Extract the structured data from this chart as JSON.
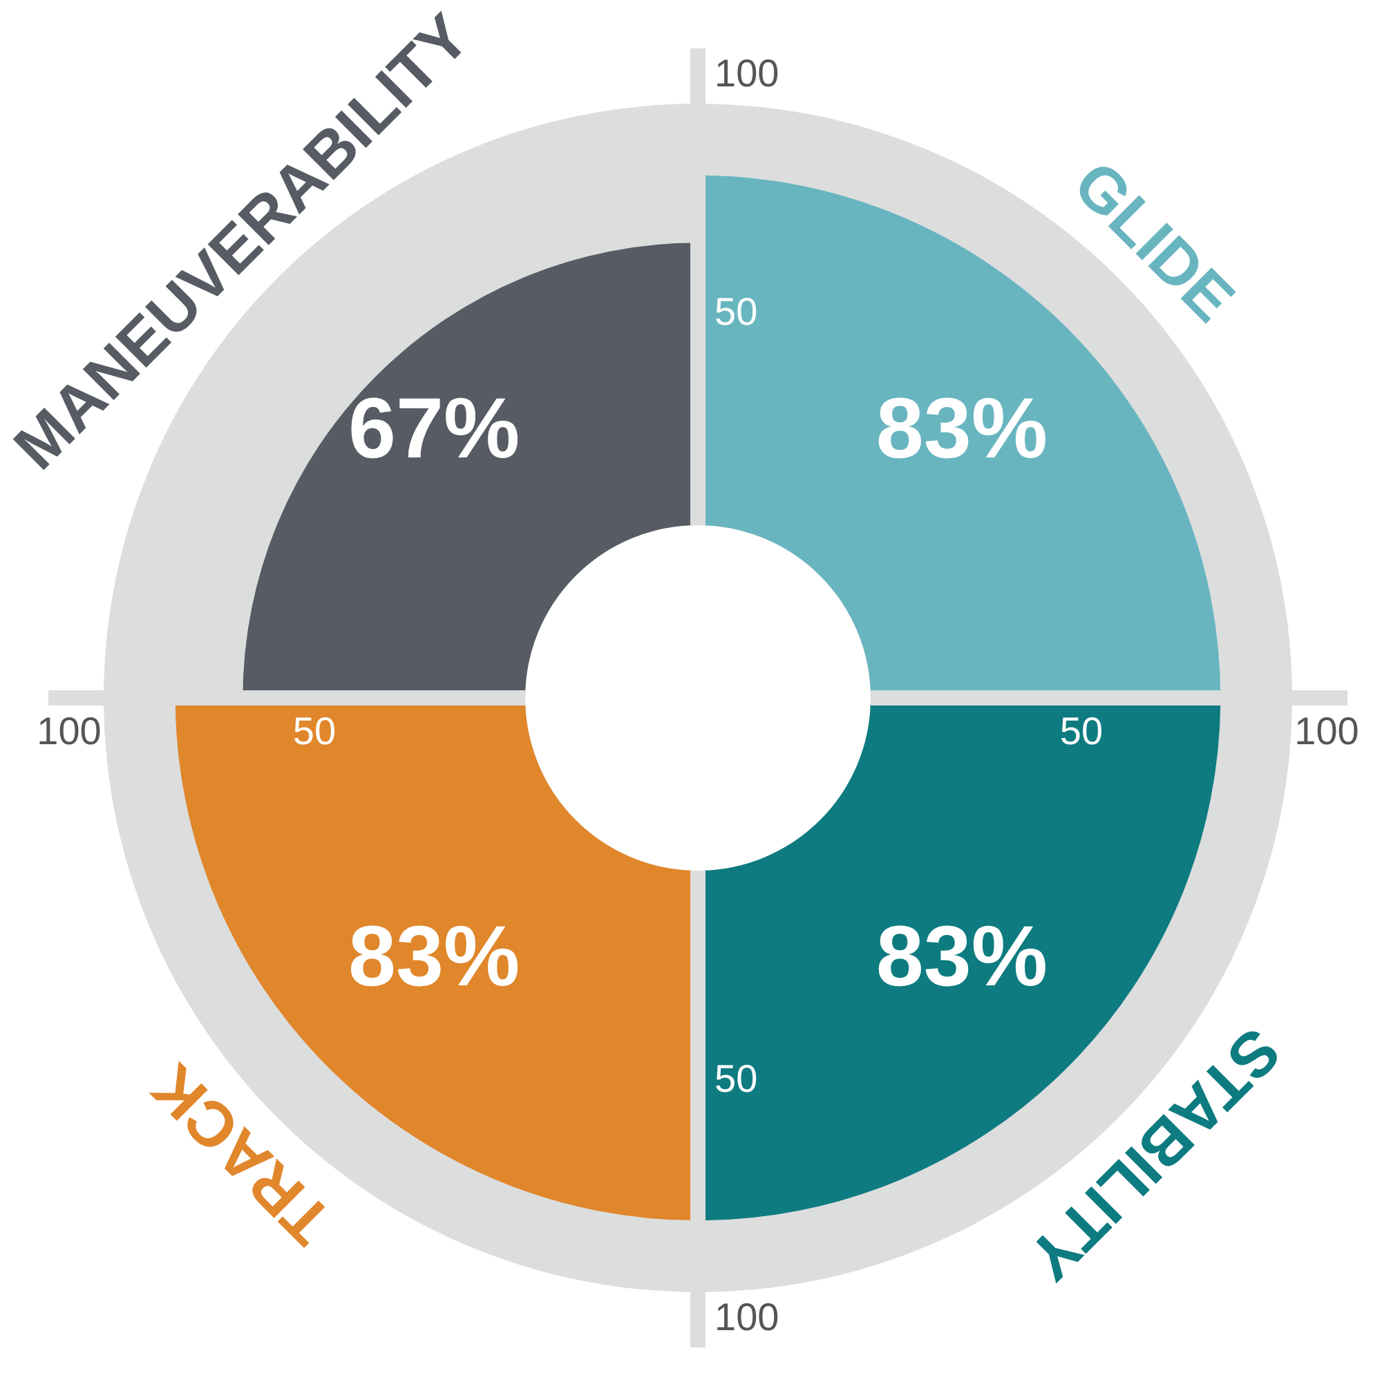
{
  "chart_data": {
    "type": "other",
    "categories": [
      "GLIDE",
      "STABILITY",
      "TRACK",
      "MANEUVERABILITY"
    ],
    "values": [
      83,
      83,
      83,
      67
    ],
    "colors": [
      "#68b5c0",
      "#0d7b80",
      "#e0862b",
      "#575b63"
    ],
    "value_labels": [
      "83%",
      "83%",
      "83%",
      "67%"
    ],
    "annotations": [
      "50",
      "100"
    ]
  }
}
